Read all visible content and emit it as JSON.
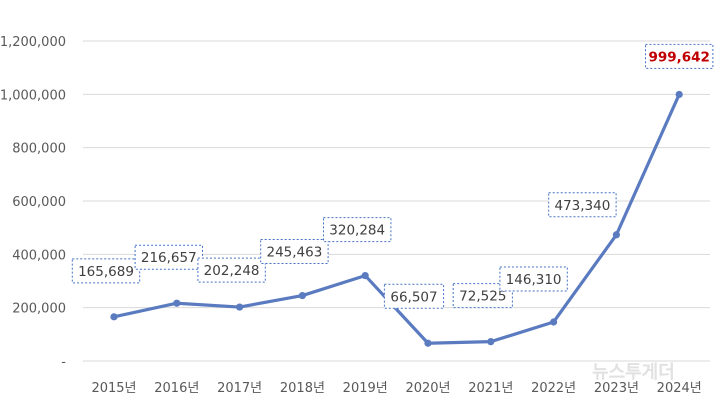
{
  "chart_data": {
    "type": "line",
    "categories": [
      "2015년",
      "2016년",
      "2017년",
      "2018년",
      "2019년",
      "2020년",
      "2021년",
      "2022년",
      "2023년",
      "2024년"
    ],
    "series": [
      {
        "values": [
          165689,
          216657,
          202248,
          245463,
          320284,
          66507,
          72525,
          146310,
          473340,
          999642
        ]
      }
    ],
    "data_labels": [
      "165,689",
      "216,657",
      "202,248",
      "245,463",
      "320,284",
      "66,507",
      "72,525",
      "146,310",
      "473,340",
      "999,642"
    ],
    "y_tick_values": [
      0,
      200000,
      400000,
      600000,
      800000,
      1000000,
      1200000
    ],
    "y_tick_labels": [
      "-",
      "200,000",
      "400,000",
      "600,000",
      "800,000",
      "1,000,000",
      "1,200,000"
    ],
    "ylim": [
      0,
      1200000
    ],
    "grid": true,
    "line_color": "#5b7bc0",
    "highlight_label_color": "#c00000",
    "highlight_index": 9
  },
  "watermark": "뉴스투게더"
}
